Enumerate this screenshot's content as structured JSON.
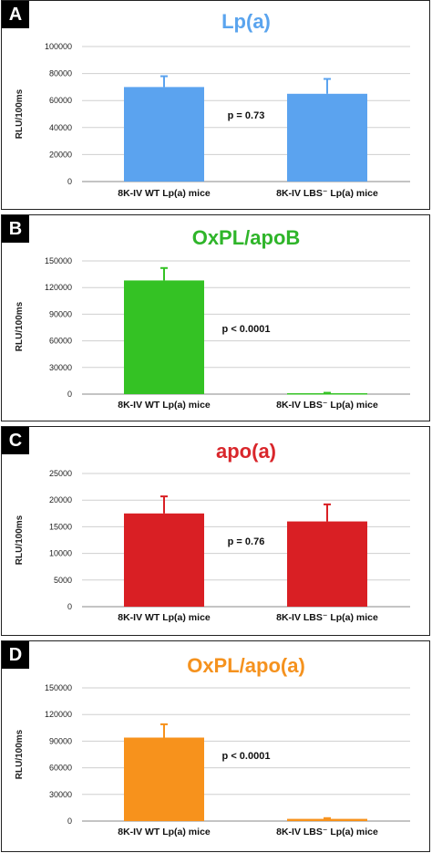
{
  "chart_data": [
    {
      "panel": "A",
      "type": "bar",
      "title": "Lp(a)",
      "title_color": "#5aa4ee",
      "bar_color": "#5ba3ef",
      "ylabel": "RLU/100ms",
      "ylim": [
        0,
        100000
      ],
      "yticks": [
        0,
        20000,
        40000,
        60000,
        80000,
        100000
      ],
      "categories": [
        "8K-IV WT Lp(a) mice",
        "8K-IV LBS⁻ Lp(a) mice"
      ],
      "values": [
        70000,
        65000
      ],
      "errors": [
        8000,
        11000
      ],
      "annotation": "p = 0.73"
    },
    {
      "panel": "B",
      "type": "bar",
      "title": "OxPL/apoB",
      "title_color": "#2fb52a",
      "bar_color": "#34c224",
      "ylabel": "RLU/100ms",
      "ylim": [
        0,
        150000
      ],
      "yticks": [
        0,
        30000,
        60000,
        90000,
        120000,
        150000
      ],
      "categories": [
        "8K-IV WT Lp(a) mice",
        "8K-IV LBS⁻ Lp(a) mice"
      ],
      "values": [
        128000,
        1000
      ],
      "errors": [
        14000,
        500
      ],
      "annotation": "p < 0.0001"
    },
    {
      "panel": "C",
      "type": "bar",
      "title": "apo(a)",
      "title_color": "#d9262b",
      "bar_color": "#d91f24",
      "ylabel": "RLU/100ms",
      "ylim": [
        0,
        25000
      ],
      "yticks": [
        0,
        5000,
        10000,
        15000,
        20000,
        25000
      ],
      "categories": [
        "8K-IV WT Lp(a) mice",
        "8K-IV LBS⁻ Lp(a) mice"
      ],
      "values": [
        17500,
        16000
      ],
      "errors": [
        3200,
        3200
      ],
      "annotation": "p = 0.76"
    },
    {
      "panel": "D",
      "type": "bar",
      "title": "OxPL/apo(a)",
      "title_color": "#f5921e",
      "bar_color": "#f7921c",
      "ylabel": "RLU/100ms",
      "ylim": [
        0,
        150000
      ],
      "yticks": [
        0,
        30000,
        60000,
        90000,
        120000,
        150000
      ],
      "categories": [
        "8K-IV WT Lp(a) mice",
        "8K-IV LBS⁻ Lp(a) mice"
      ],
      "values": [
        94000,
        2500
      ],
      "errors": [
        15000,
        800
      ],
      "annotation": "p < 0.0001"
    }
  ]
}
